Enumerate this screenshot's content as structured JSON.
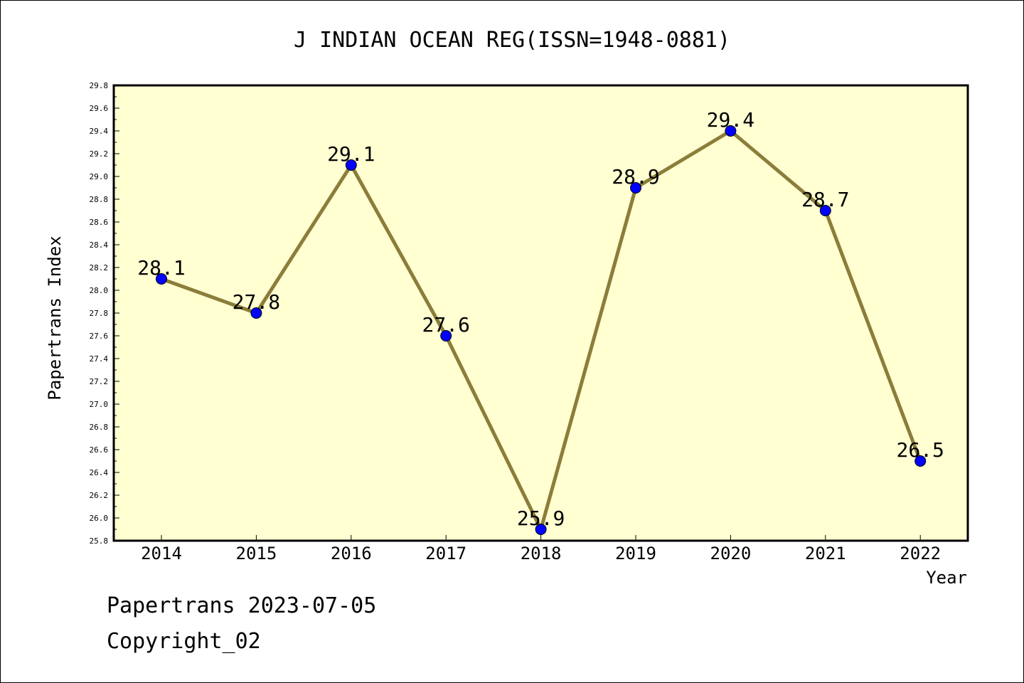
{
  "chart_data": {
    "type": "line",
    "title": "J INDIAN OCEAN REG(ISSN=1948-0881)",
    "xlabel": "Year",
    "ylabel": "Papertrans Index",
    "categories": [
      "2014",
      "2015",
      "2016",
      "2017",
      "2018",
      "2019",
      "2020",
      "2021",
      "2022"
    ],
    "series": [
      {
        "values": [
          28.1,
          27.8,
          29.1,
          27.6,
          25.9,
          28.9,
          29.4,
          28.7,
          26.5
        ]
      }
    ],
    "point_labels": [
      "28.1",
      "27.8",
      "29.1",
      "27.6",
      "25.9",
      "28.9",
      "29.4",
      "28.7",
      "26.5"
    ],
    "ylim": [
      25.8,
      29.8
    ],
    "yticks": [
      "25.8",
      "26.0",
      "26.2",
      "26.4",
      "26.6",
      "26.8",
      "27.0",
      "27.2",
      "27.4",
      "27.6",
      "27.8",
      "28.0",
      "28.2",
      "28.4",
      "28.6",
      "28.8",
      "29.0",
      "29.2",
      "29.4",
      "29.6",
      "29.8"
    ],
    "grid": false,
    "colors": {
      "plot_background": "#ffffd2",
      "line": "#8b7d3a",
      "marker": "#0000ff"
    }
  },
  "footer": {
    "date_line": "Papertrans 2023-07-05",
    "copyright": "Copyright_02"
  }
}
